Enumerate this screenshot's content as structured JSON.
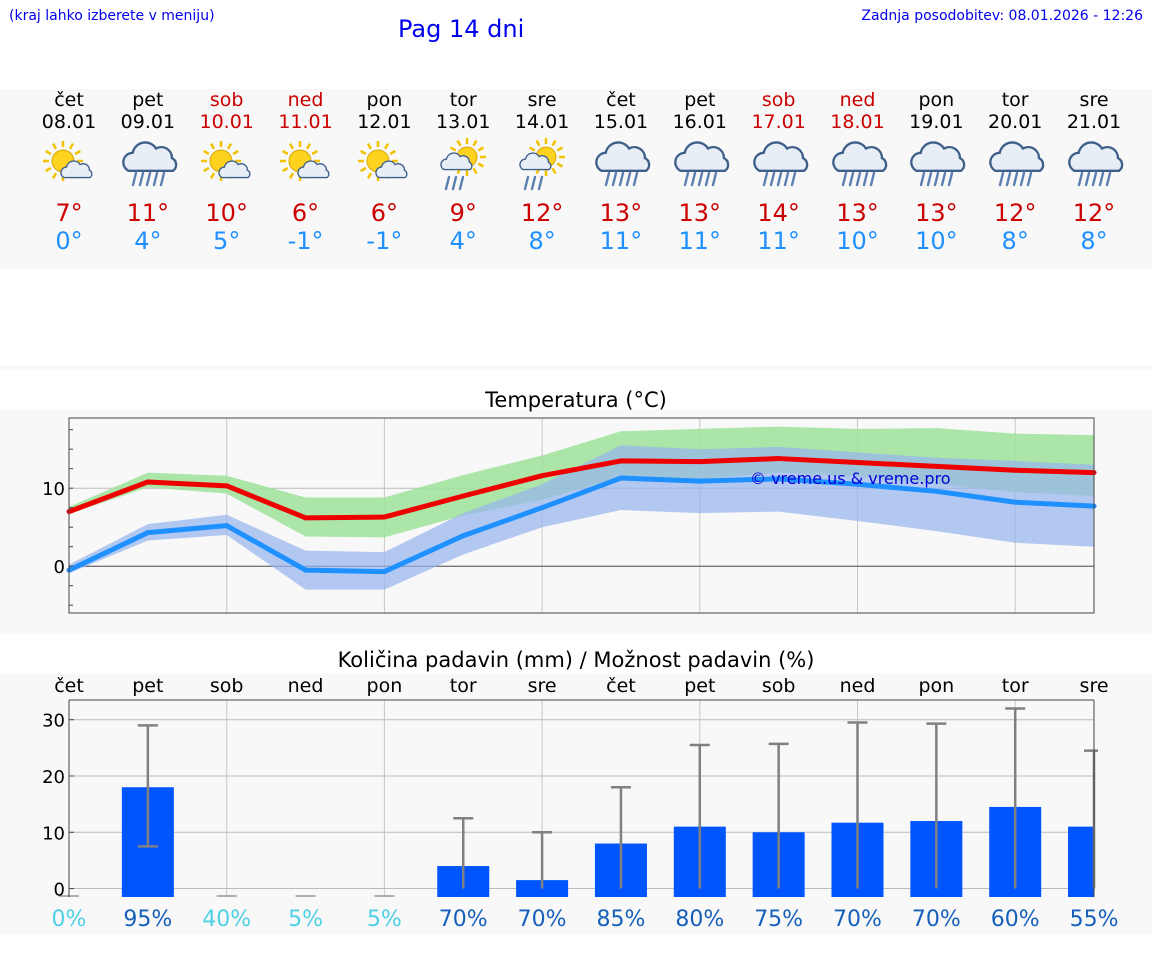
{
  "header": {
    "menu_hint": "(kraj lahko izberete v meniju)",
    "title": "Pag 14 dni",
    "last_update": "Zadnja posodobitev: 08.01.2026 - 12:26"
  },
  "days": [
    {
      "name": "čet",
      "date": "08.01",
      "weekend": false,
      "icon": "sun-cloud-icon",
      "tmax": "7°",
      "tmin": "0°"
    },
    {
      "name": "pet",
      "date": "09.01",
      "weekend": false,
      "icon": "rain-cloud-icon",
      "tmax": "11°",
      "tmin": "4°"
    },
    {
      "name": "sob",
      "date": "10.01",
      "weekend": true,
      "icon": "sun-cloud-icon",
      "tmax": "10°",
      "tmin": "5°"
    },
    {
      "name": "ned",
      "date": "11.01",
      "weekend": true,
      "icon": "sun-cloud-icon",
      "tmax": "6°",
      "tmin": "-1°"
    },
    {
      "name": "pon",
      "date": "12.01",
      "weekend": false,
      "icon": "sun-cloud-icon",
      "tmax": "6°",
      "tmin": "-1°"
    },
    {
      "name": "tor",
      "date": "13.01",
      "weekend": false,
      "icon": "sun-rain-icon",
      "tmax": "9°",
      "tmin": "4°"
    },
    {
      "name": "sre",
      "date": "14.01",
      "weekend": false,
      "icon": "sun-rain-icon",
      "tmax": "12°",
      "tmin": "8°"
    },
    {
      "name": "čet",
      "date": "15.01",
      "weekend": false,
      "icon": "rain-cloud-icon",
      "tmax": "13°",
      "tmin": "11°"
    },
    {
      "name": "pet",
      "date": "16.01",
      "weekend": false,
      "icon": "rain-cloud-icon",
      "tmax": "13°",
      "tmin": "11°"
    },
    {
      "name": "sob",
      "date": "17.01",
      "weekend": true,
      "icon": "rain-cloud-icon",
      "tmax": "14°",
      "tmin": "11°"
    },
    {
      "name": "ned",
      "date": "18.01",
      "weekend": true,
      "icon": "rain-cloud-icon",
      "tmax": "13°",
      "tmin": "10°"
    },
    {
      "name": "pon",
      "date": "19.01",
      "weekend": false,
      "icon": "rain-cloud-icon",
      "tmax": "13°",
      "tmin": "10°"
    },
    {
      "name": "tor",
      "date": "20.01",
      "weekend": false,
      "icon": "rain-cloud-icon",
      "tmax": "12°",
      "tmin": "8°"
    },
    {
      "name": "sre",
      "date": "21.01",
      "weekend": false,
      "icon": "rain-cloud-icon",
      "tmax": "12°",
      "tmin": "8°"
    }
  ],
  "colors": {
    "max_line": "#ee0000",
    "min_line": "#1e90ff",
    "max_band": "#9ee39a",
    "min_band": "#96b4ee",
    "bar": "#0055ff",
    "errbar": "#808080",
    "prob_low": "#4ed0e6",
    "prob_high": "#1660bb"
  },
  "chart_data": [
    {
      "type": "line",
      "title": "Temperatura (°C)",
      "watermark": "© vreme.us & vreme.pro",
      "x": [
        0,
        1,
        2,
        3,
        4,
        5,
        6,
        7,
        8,
        9,
        10,
        11,
        12,
        13
      ],
      "ylim": [
        -6,
        19
      ],
      "yticks": [
        0,
        10
      ],
      "series": [
        {
          "name": "max",
          "values": [
            7,
            10.8,
            10.3,
            6.2,
            6.3,
            9,
            11.6,
            13.5,
            13.4,
            13.8,
            13.3,
            12.8,
            12.3,
            12
          ]
        },
        {
          "name": "min",
          "values": [
            -0.5,
            4.3,
            5.2,
            -0.5,
            -0.7,
            3.9,
            7.5,
            11.3,
            10.9,
            11.2,
            10.5,
            9.6,
            8.2,
            7.7
          ]
        }
      ],
      "bands": [
        {
          "name": "max_range",
          "low": [
            6.7,
            10.1,
            9.3,
            3.8,
            3.7,
            6.5,
            8.5,
            11.4,
            11.2,
            12,
            11.5,
            10.5,
            9.5,
            9
          ],
          "high": [
            7.6,
            12,
            11.6,
            8.8,
            8.8,
            11.7,
            14.2,
            17.3,
            17.6,
            17.9,
            17.6,
            17.7,
            17,
            16.8
          ]
        },
        {
          "name": "min_range",
          "low": [
            -0.9,
            3.3,
            4,
            -3,
            -3,
            1.5,
            5,
            7.2,
            6.8,
            7,
            5.8,
            4.5,
            3,
            2.5
          ],
          "high": [
            0.2,
            5.4,
            6.6,
            2,
            1.8,
            6.8,
            10.5,
            15.5,
            15,
            15.3,
            14.6,
            13.9,
            13.5,
            13
          ]
        }
      ]
    },
    {
      "type": "bar",
      "title": "Količina padavin (mm) / Možnost padavin (%)",
      "categories": [
        "čet",
        "pet",
        "sob",
        "ned",
        "pon",
        "tor",
        "sre",
        "čet",
        "pet",
        "sob",
        "ned",
        "pon",
        "tor",
        "sre"
      ],
      "values": [
        0,
        18,
        0,
        0,
        0,
        4,
        1.5,
        8,
        11,
        10,
        11.7,
        12,
        14.5,
        11
      ],
      "err_low": [
        0,
        7.5,
        0,
        0,
        0,
        0,
        0,
        0,
        0,
        0,
        0,
        0,
        0,
        0
      ],
      "err_high": [
        0,
        29,
        0,
        0,
        0,
        12.5,
        10,
        18,
        25.5,
        25.7,
        29.5,
        29.3,
        32,
        24.5
      ],
      "probability": [
        "0%",
        "95%",
        "40%",
        "5%",
        "5%",
        "70%",
        "70%",
        "85%",
        "80%",
        "75%",
        "70%",
        "70%",
        "60%",
        "55%"
      ],
      "ylim": [
        -1.5,
        33.5
      ],
      "yticks": [
        0,
        10,
        20,
        30
      ]
    }
  ]
}
